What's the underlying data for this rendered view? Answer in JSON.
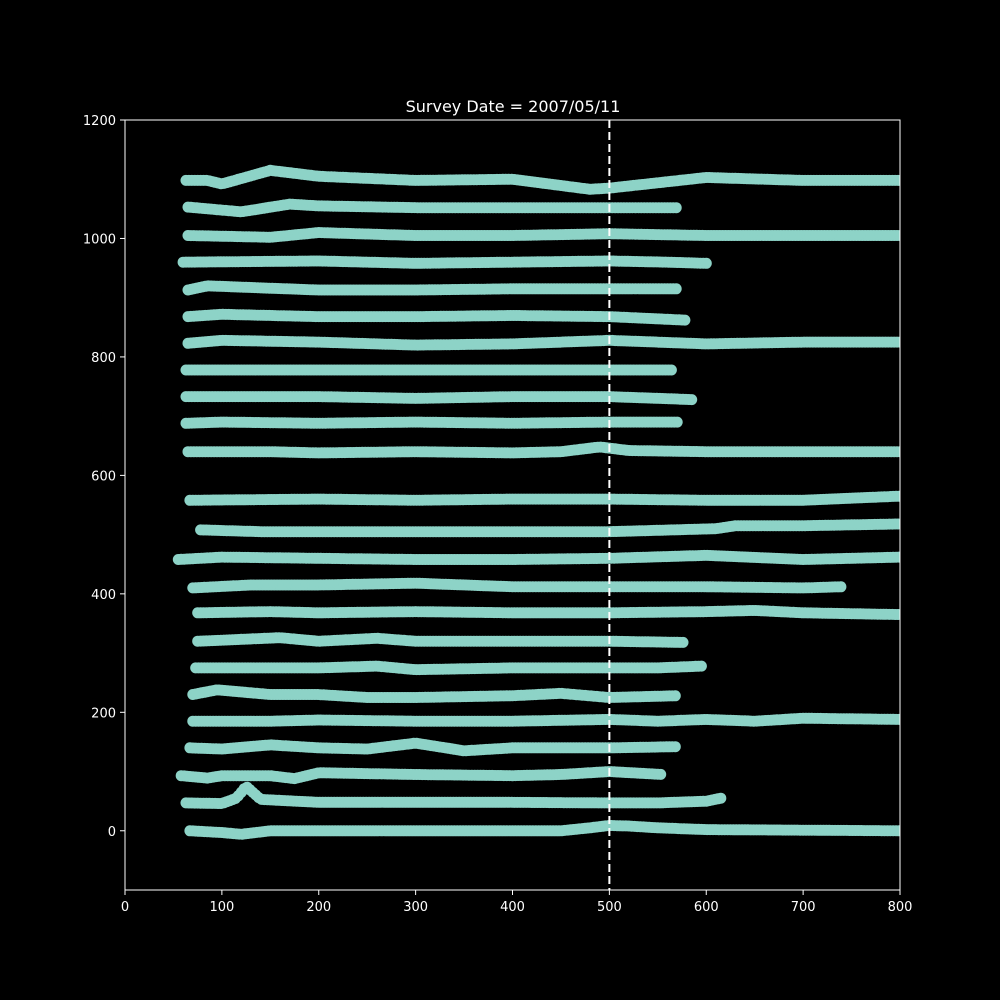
{
  "chart_data": {
    "type": "scatter",
    "title": "Survey Date = 2007/05/11",
    "xlabel": "",
    "ylabel": "",
    "xlim": [
      0,
      800
    ],
    "ylim": [
      -100,
      1200
    ],
    "x_ticks": [
      0,
      100,
      200,
      300,
      400,
      500,
      600,
      700,
      800
    ],
    "y_ticks": [
      0,
      200,
      400,
      600,
      800,
      1000,
      1200
    ],
    "grid": false,
    "background_color": "#000000",
    "axis_color": "#ffffff",
    "marker_color": "#8dd3c7",
    "reference_line": {
      "orientation": "vertical",
      "x": 500,
      "style": "dashed",
      "color": "#ffffff"
    },
    "tracks": [
      {
        "xmin": 67,
        "xmax": 800,
        "points": [
          [
            67,
            0
          ],
          [
            100,
            -3
          ],
          [
            120,
            -6
          ],
          [
            150,
            0
          ],
          [
            200,
            0
          ],
          [
            300,
            0
          ],
          [
            400,
            0
          ],
          [
            450,
            0
          ],
          [
            480,
            5
          ],
          [
            500,
            9
          ],
          [
            520,
            8
          ],
          [
            550,
            5
          ],
          [
            600,
            2
          ],
          [
            700,
            1
          ],
          [
            800,
            0
          ]
        ]
      },
      {
        "xmin": 63,
        "xmax": 615,
        "points": [
          [
            63,
            47
          ],
          [
            100,
            46
          ],
          [
            115,
            55
          ],
          [
            120,
            65
          ],
          [
            125,
            75
          ],
          [
            140,
            53
          ],
          [
            200,
            48
          ],
          [
            300,
            48
          ],
          [
            400,
            48
          ],
          [
            500,
            47
          ],
          [
            550,
            47
          ],
          [
            600,
            50
          ],
          [
            615,
            55
          ]
        ]
      },
      {
        "xmin": 58,
        "xmax": 555,
        "points": [
          [
            58,
            93
          ],
          [
            85,
            89
          ],
          [
            100,
            93
          ],
          [
            150,
            93
          ],
          [
            175,
            88
          ],
          [
            200,
            98
          ],
          [
            300,
            95
          ],
          [
            400,
            93
          ],
          [
            450,
            95
          ],
          [
            500,
            100
          ],
          [
            555,
            95
          ]
        ]
      },
      {
        "xmin": 67,
        "xmax": 570,
        "points": [
          [
            67,
            140
          ],
          [
            100,
            138
          ],
          [
            150,
            145
          ],
          [
            200,
            140
          ],
          [
            250,
            138
          ],
          [
            300,
            148
          ],
          [
            350,
            135
          ],
          [
            400,
            140
          ],
          [
            450,
            140
          ],
          [
            500,
            140
          ],
          [
            570,
            142
          ]
        ]
      },
      {
        "xmin": 70,
        "xmax": 800,
        "points": [
          [
            70,
            185
          ],
          [
            150,
            185
          ],
          [
            200,
            187
          ],
          [
            300,
            185
          ],
          [
            400,
            185
          ],
          [
            500,
            188
          ],
          [
            550,
            185
          ],
          [
            600,
            188
          ],
          [
            650,
            185
          ],
          [
            700,
            190
          ],
          [
            800,
            188
          ]
        ]
      },
      {
        "xmin": 70,
        "xmax": 570,
        "points": [
          [
            70,
            230
          ],
          [
            95,
            238
          ],
          [
            150,
            230
          ],
          [
            200,
            230
          ],
          [
            250,
            225
          ],
          [
            300,
            225
          ],
          [
            400,
            228
          ],
          [
            450,
            232
          ],
          [
            500,
            225
          ],
          [
            570,
            228
          ]
        ]
      },
      {
        "xmin": 73,
        "xmax": 595,
        "points": [
          [
            73,
            275
          ],
          [
            130,
            275
          ],
          [
            200,
            275
          ],
          [
            260,
            278
          ],
          [
            300,
            272
          ],
          [
            400,
            275
          ],
          [
            500,
            275
          ],
          [
            550,
            275
          ],
          [
            595,
            278
          ]
        ]
      },
      {
        "xmin": 75,
        "xmax": 577,
        "points": [
          [
            75,
            320
          ],
          [
            160,
            326
          ],
          [
            200,
            320
          ],
          [
            260,
            325
          ],
          [
            300,
            320
          ],
          [
            400,
            320
          ],
          [
            500,
            320
          ],
          [
            577,
            318
          ]
        ]
      },
      {
        "xmin": 75,
        "xmax": 800,
        "points": [
          [
            75,
            368
          ],
          [
            150,
            370
          ],
          [
            200,
            368
          ],
          [
            300,
            370
          ],
          [
            400,
            368
          ],
          [
            450,
            368
          ],
          [
            500,
            368
          ],
          [
            600,
            370
          ],
          [
            650,
            372
          ],
          [
            700,
            368
          ],
          [
            800,
            365
          ]
        ]
      },
      {
        "xmin": 70,
        "xmax": 740,
        "points": [
          [
            70,
            410
          ],
          [
            130,
            415
          ],
          [
            200,
            415
          ],
          [
            300,
            418
          ],
          [
            400,
            412
          ],
          [
            500,
            412
          ],
          [
            600,
            412
          ],
          [
            700,
            410
          ],
          [
            740,
            412
          ]
        ]
      },
      {
        "xmin": 55,
        "xmax": 800,
        "points": [
          [
            55,
            458
          ],
          [
            100,
            462
          ],
          [
            200,
            460
          ],
          [
            300,
            458
          ],
          [
            400,
            458
          ],
          [
            500,
            460
          ],
          [
            600,
            465
          ],
          [
            700,
            458
          ],
          [
            800,
            462
          ]
        ]
      },
      {
        "xmin": 78,
        "xmax": 800,
        "points": [
          [
            78,
            508
          ],
          [
            140,
            505
          ],
          [
            200,
            505
          ],
          [
            300,
            505
          ],
          [
            400,
            505
          ],
          [
            500,
            505
          ],
          [
            610,
            510
          ],
          [
            630,
            515
          ],
          [
            700,
            515
          ],
          [
            800,
            518
          ]
        ]
      },
      {
        "xmin": 67,
        "xmax": 800,
        "points": [
          [
            67,
            558
          ],
          [
            200,
            560
          ],
          [
            300,
            558
          ],
          [
            400,
            560
          ],
          [
            500,
            560
          ],
          [
            600,
            558
          ],
          [
            700,
            558
          ],
          [
            800,
            565
          ]
        ]
      },
      {
        "xmin": 65,
        "xmax": 800,
        "points": [
          [
            65,
            640
          ],
          [
            150,
            640
          ],
          [
            200,
            638
          ],
          [
            300,
            640
          ],
          [
            400,
            638
          ],
          [
            450,
            640
          ],
          [
            490,
            648
          ],
          [
            520,
            642
          ],
          [
            600,
            640
          ],
          [
            700,
            640
          ],
          [
            800,
            640
          ]
        ]
      },
      {
        "xmin": 63,
        "xmax": 570,
        "points": [
          [
            63,
            688
          ],
          [
            100,
            690
          ],
          [
            200,
            688
          ],
          [
            300,
            690
          ],
          [
            400,
            688
          ],
          [
            500,
            690
          ],
          [
            570,
            690
          ]
        ]
      },
      {
        "xmin": 63,
        "xmax": 585,
        "points": [
          [
            63,
            733
          ],
          [
            200,
            733
          ],
          [
            300,
            730
          ],
          [
            400,
            733
          ],
          [
            500,
            733
          ],
          [
            585,
            728
          ]
        ]
      },
      {
        "xmin": 63,
        "xmax": 565,
        "points": [
          [
            63,
            778
          ],
          [
            200,
            778
          ],
          [
            300,
            778
          ],
          [
            400,
            778
          ],
          [
            500,
            778
          ],
          [
            565,
            778
          ]
        ]
      },
      {
        "xmin": 65,
        "xmax": 800,
        "points": [
          [
            65,
            823
          ],
          [
            100,
            828
          ],
          [
            200,
            825
          ],
          [
            300,
            820
          ],
          [
            400,
            822
          ],
          [
            500,
            828
          ],
          [
            600,
            822
          ],
          [
            700,
            825
          ],
          [
            800,
            825
          ]
        ]
      },
      {
        "xmin": 65,
        "xmax": 580,
        "points": [
          [
            65,
            868
          ],
          [
            100,
            872
          ],
          [
            200,
            868
          ],
          [
            300,
            868
          ],
          [
            400,
            870
          ],
          [
            500,
            868
          ],
          [
            580,
            862
          ]
        ]
      },
      {
        "xmin": 65,
        "xmax": 570,
        "points": [
          [
            65,
            913
          ],
          [
            85,
            920
          ],
          [
            150,
            916
          ],
          [
            200,
            913
          ],
          [
            300,
            913
          ],
          [
            400,
            915
          ],
          [
            500,
            915
          ],
          [
            570,
            915
          ]
        ]
      },
      {
        "xmin": 60,
        "xmax": 600,
        "points": [
          [
            60,
            960
          ],
          [
            200,
            962
          ],
          [
            300,
            958
          ],
          [
            400,
            960
          ],
          [
            500,
            962
          ],
          [
            560,
            960
          ],
          [
            600,
            958
          ]
        ]
      },
      {
        "xmin": 65,
        "xmax": 800,
        "points": [
          [
            65,
            1005
          ],
          [
            150,
            1002
          ],
          [
            200,
            1010
          ],
          [
            300,
            1005
          ],
          [
            400,
            1005
          ],
          [
            500,
            1008
          ],
          [
            600,
            1005
          ],
          [
            700,
            1005
          ],
          [
            800,
            1005
          ]
        ]
      },
      {
        "xmin": 65,
        "xmax": 570,
        "points": [
          [
            65,
            1053
          ],
          [
            120,
            1045
          ],
          [
            170,
            1058
          ],
          [
            200,
            1055
          ],
          [
            300,
            1052
          ],
          [
            400,
            1052
          ],
          [
            500,
            1052
          ],
          [
            570,
            1052
          ]
        ]
      },
      {
        "xmin": 63,
        "xmax": 800,
        "points": [
          [
            63,
            1098
          ],
          [
            85,
            1098
          ],
          [
            100,
            1092
          ],
          [
            150,
            1115
          ],
          [
            200,
            1105
          ],
          [
            300,
            1098
          ],
          [
            400,
            1100
          ],
          [
            480,
            1083
          ],
          [
            500,
            1085
          ],
          [
            600,
            1103
          ],
          [
            700,
            1098
          ],
          [
            800,
            1098
          ]
        ]
      }
    ]
  }
}
